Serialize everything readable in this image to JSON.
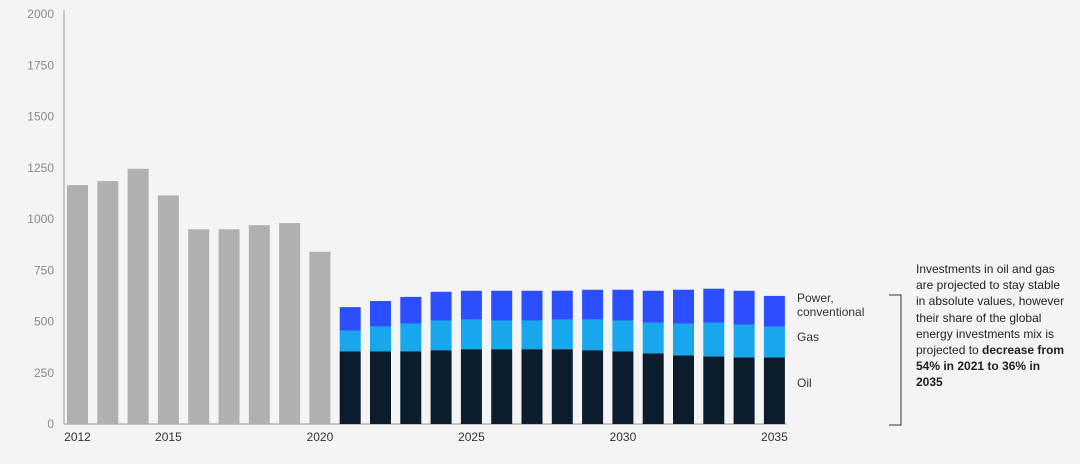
{
  "chart_data": {
    "type": "bar",
    "stacked": true,
    "ylim": [
      0,
      2000
    ],
    "yticks": [
      0,
      250,
      500,
      750,
      1000,
      1250,
      1500,
      1750,
      2000
    ],
    "categories": [
      "2012",
      "2013",
      "2014",
      "2015",
      "2016",
      "2017",
      "2018",
      "2019",
      "2020",
      "2021",
      "2022",
      "2023",
      "2024",
      "2025",
      "2026",
      "2027",
      "2028",
      "2029",
      "2030",
      "2031",
      "2032",
      "2033",
      "2034",
      "2035"
    ],
    "xtick_labels": [
      {
        "category": "2012",
        "label": "2012"
      },
      {
        "category": "2015",
        "label": "2015"
      },
      {
        "category": "2020",
        "label": "2020"
      },
      {
        "category": "2025",
        "label": "2025"
      },
      {
        "category": "2030",
        "label": "2030"
      },
      {
        "category": "2035",
        "label": "2035"
      }
    ],
    "historical": {
      "categories": [
        "2012",
        "2013",
        "2014",
        "2015",
        "2016",
        "2017",
        "2018",
        "2019",
        "2020"
      ],
      "values": [
        1165,
        1185,
        1245,
        1115,
        950,
        950,
        970,
        980,
        840
      ],
      "color": "#b0b0b0"
    },
    "series": [
      {
        "name": "Oil",
        "color": "#0b1c2d",
        "values": [
          null,
          null,
          null,
          null,
          null,
          null,
          null,
          null,
          null,
          355,
          355,
          355,
          360,
          365,
          365,
          365,
          365,
          360,
          355,
          345,
          335,
          330,
          325,
          325
        ]
      },
      {
        "name": "Gas",
        "color": "#18a6ec",
        "values": [
          null,
          null,
          null,
          null,
          null,
          null,
          null,
          null,
          null,
          100,
          120,
          135,
          145,
          145,
          140,
          140,
          145,
          150,
          150,
          150,
          155,
          165,
          160,
          150
        ]
      },
      {
        "name": "Power, conventional",
        "color": "#2b4fff",
        "values": [
          null,
          null,
          null,
          null,
          null,
          null,
          null,
          null,
          null,
          115,
          125,
          130,
          140,
          140,
          145,
          145,
          140,
          145,
          150,
          155,
          165,
          165,
          165,
          150
        ]
      }
    ],
    "legend": [
      {
        "lines": [
          "Power,",
          "conventional"
        ]
      },
      {
        "lines": [
          "Gas"
        ]
      },
      {
        "lines": [
          "Oil"
        ]
      }
    ],
    "annotation": {
      "normal": "Investments in oil and gas are projected to stay stable in absolute values, however their share of the global energy investments mix is projected to ",
      "bold": "decrease from 54% in 2021 to 36% in 2035"
    }
  }
}
